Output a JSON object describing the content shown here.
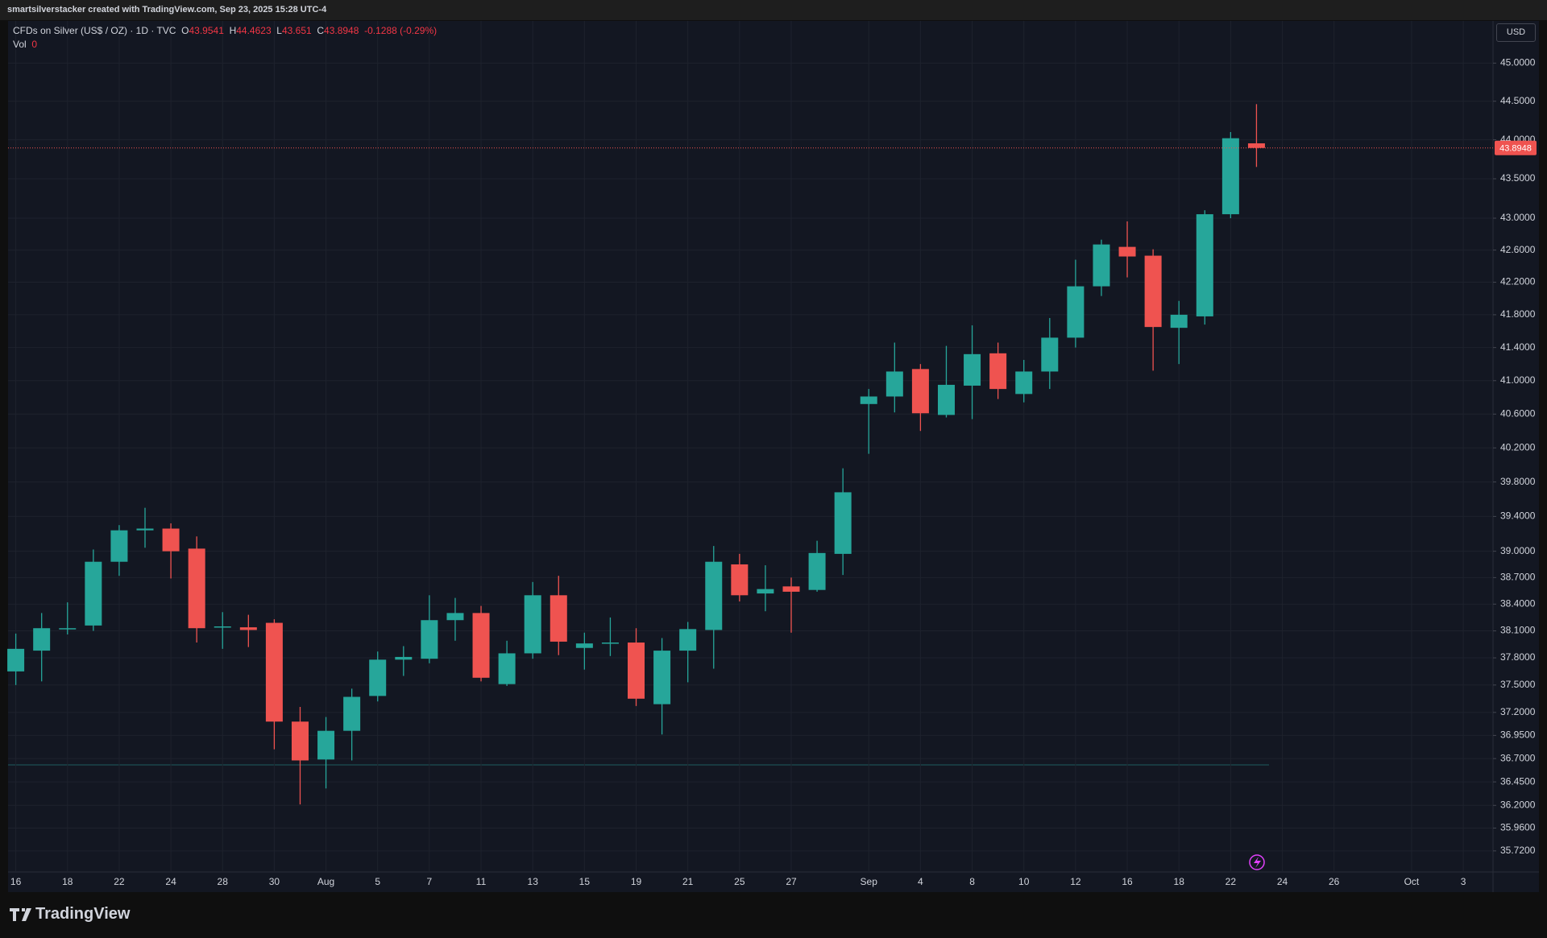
{
  "header": {
    "attribution": "smartsilverstacker created with TradingView.com, Sep 23, 2025 15:28 UTC-4",
    "symbol": "CFDs on Silver (US$ / OZ) · 1D · TVC",
    "ohlc_letters": [
      "O",
      "H",
      "L",
      "C"
    ],
    "change": "-0.1288 (-0.29%)",
    "volume_label": "Vol",
    "volume": 0,
    "currency": "USD",
    "brand": "TradingView"
  },
  "chart_data": {
    "type": "candlestick",
    "categories": [
      "16",
      null,
      "18",
      null,
      "22",
      null,
      "24",
      null,
      "28",
      null,
      "30",
      null,
      "Aug",
      null,
      "5",
      null,
      "7",
      null,
      "11",
      null,
      "13",
      null,
      "15",
      null,
      "19",
      null,
      "21",
      null,
      "25",
      null,
      "27",
      null,
      null,
      "Sep",
      null,
      "4",
      null,
      "8",
      null,
      "10",
      null,
      "12",
      null,
      "16",
      null,
      "18",
      null,
      "22",
      null,
      "24",
      null,
      "26",
      null,
      null,
      "Oct",
      null,
      "3"
    ],
    "open": [
      37.65,
      37.88,
      38.12,
      38.16,
      38.88,
      39.24,
      39.26,
      39.03,
      38.14,
      38.14,
      38.19,
      37.1,
      36.69,
      37.0,
      37.38,
      37.78,
      37.79,
      38.22,
      38.3,
      37.51,
      37.85,
      38.5,
      37.91,
      37.96,
      37.97,
      37.29,
      37.88,
      38.11,
      38.85,
      38.52,
      38.6,
      38.56,
      38.97,
      40.72,
      40.81,
      41.14,
      40.59,
      40.94,
      41.33,
      40.84,
      41.11,
      41.52,
      42.15,
      42.64,
      42.53,
      41.64,
      41.78,
      43.05,
      43.9541,
      null,
      null,
      null,
      null,
      null,
      null,
      null,
      null
    ],
    "high": [
      38.07,
      38.3,
      38.42,
      39.02,
      39.3,
      39.5,
      39.32,
      39.17,
      38.31,
      38.28,
      38.23,
      37.26,
      37.15,
      37.46,
      37.87,
      37.93,
      38.5,
      38.47,
      38.38,
      37.99,
      38.65,
      38.72,
      38.08,
      38.25,
      38.13,
      38.02,
      38.2,
      39.06,
      38.97,
      38.84,
      38.7,
      39.12,
      39.96,
      40.9,
      41.46,
      41.2,
      41.42,
      41.67,
      41.46,
      41.25,
      41.76,
      42.48,
      42.73,
      42.96,
      42.61,
      41.97,
      43.1,
      44.1,
      44.4623,
      null,
      null,
      null,
      null,
      null,
      null,
      null,
      null
    ],
    "low": [
      37.5,
      37.54,
      38.06,
      38.1,
      38.72,
      39.04,
      38.69,
      37.97,
      37.9,
      37.92,
      36.8,
      36.21,
      36.38,
      36.68,
      37.32,
      37.6,
      37.74,
      37.99,
      37.54,
      37.49,
      37.79,
      37.83,
      37.67,
      37.82,
      37.27,
      36.96,
      37.53,
      37.68,
      38.43,
      38.32,
      38.08,
      38.54,
      38.73,
      40.13,
      40.62,
      40.4,
      40.56,
      40.54,
      40.78,
      40.74,
      40.9,
      41.4,
      42.03,
      42.26,
      41.12,
      41.2,
      41.68,
      43.0,
      43.651,
      null,
      null,
      null,
      null,
      null,
      null,
      null,
      null
    ],
    "close": [
      37.9,
      38.13,
      38.13,
      38.88,
      39.24,
      39.26,
      39.0,
      38.13,
      38.15,
      38.11,
      37.1,
      36.68,
      37.0,
      37.37,
      37.78,
      37.81,
      38.22,
      38.3,
      37.58,
      37.85,
      38.5,
      37.98,
      37.96,
      37.97,
      37.35,
      37.88,
      38.12,
      38.88,
      38.5,
      38.57,
      38.54,
      38.98,
      39.68,
      40.81,
      41.11,
      40.61,
      40.95,
      41.32,
      40.9,
      41.11,
      41.52,
      42.15,
      42.67,
      42.52,
      41.65,
      41.8,
      43.05,
      44.02,
      43.8948,
      null,
      null,
      null,
      null,
      null,
      null,
      null,
      null
    ],
    "up_color": "#26a69a",
    "down_color": "#ef5350",
    "log_scale": true,
    "grid": true,
    "ylim": [
      35.5,
      45.56
    ],
    "yticks": [
      {
        "value": 45,
        "label": "45.0000"
      },
      {
        "value": 44.5,
        "label": "44.5000"
      },
      {
        "value": 44,
        "label": "44.0000"
      },
      {
        "value": 43.5,
        "label": "43.5000"
      },
      {
        "value": 43,
        "label": "43.0000"
      },
      {
        "value": 42.6,
        "label": "42.6000"
      },
      {
        "value": 42.2,
        "label": "42.2000"
      },
      {
        "value": 41.8,
        "label": "41.8000"
      },
      {
        "value": 41.4,
        "label": "41.4000"
      },
      {
        "value": 41,
        "label": "41.0000"
      },
      {
        "value": 40.6,
        "label": "40.6000"
      },
      {
        "value": 40.2,
        "label": "40.2000"
      },
      {
        "value": 39.8,
        "label": "39.8000"
      },
      {
        "value": 39.4,
        "label": "39.4000"
      },
      {
        "value": 39,
        "label": "39.0000"
      },
      {
        "value": 38.7,
        "label": "38.7000"
      },
      {
        "value": 38.4,
        "label": "38.4000"
      },
      {
        "value": 38.1,
        "label": "38.1000"
      },
      {
        "value": 37.8,
        "label": "37.8000"
      },
      {
        "value": 37.5,
        "label": "37.5000"
      },
      {
        "value": 37.2,
        "label": "37.2000"
      },
      {
        "value": 36.95,
        "label": "36.9500"
      },
      {
        "value": 36.7,
        "label": "36.7000"
      },
      {
        "value": 36.45,
        "label": "36.4500"
      },
      {
        "value": 36.2,
        "label": "36.2000"
      },
      {
        "value": 35.96,
        "label": "35.9600"
      },
      {
        "value": 35.72,
        "label": "35.7200"
      }
    ]
  }
}
